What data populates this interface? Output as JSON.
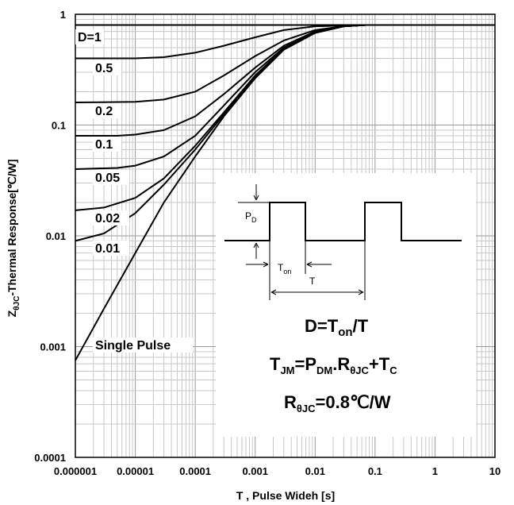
{
  "chart_data": {
    "type": "line",
    "xlabel": "T , Pulse Wideh [s]",
    "ylabel": "Z",
    "ylabel_sub": "θJC",
    "ylabel_rest": "-Thermal Response[℃/W]",
    "x_scale": "log",
    "y_scale": "log",
    "xlim": [
      1e-06,
      10
    ],
    "ylim": [
      0.0001,
      1
    ],
    "grid": true,
    "x_ticks": [
      "0.000001",
      "0.00001",
      "0.0001",
      "0.001",
      "0.01",
      "0.1",
      "1",
      "10"
    ],
    "y_ticks": [
      "1",
      "0.1",
      "0.01",
      "0.001",
      "0.0001"
    ],
    "series": [
      {
        "name": "D=1",
        "x": [
          1e-06,
          10
        ],
        "values": [
          0.8,
          0.8
        ]
      },
      {
        "name": "0.5",
        "values": [
          [
            1e-06,
            0.4
          ],
          [
            1e-05,
            0.4
          ],
          [
            3e-05,
            0.41
          ],
          [
            0.0001,
            0.45
          ],
          [
            0.0003,
            0.52
          ],
          [
            0.001,
            0.62
          ],
          [
            0.003,
            0.72
          ],
          [
            0.01,
            0.78
          ],
          [
            0.03,
            0.79
          ],
          [
            0.06,
            0.8
          ],
          [
            10,
            0.8
          ]
        ]
      },
      {
        "name": "0.2",
        "values": [
          [
            1e-06,
            0.16
          ],
          [
            1e-05,
            0.162
          ],
          [
            3e-05,
            0.17
          ],
          [
            0.0001,
            0.2
          ],
          [
            0.0003,
            0.28
          ],
          [
            0.001,
            0.42
          ],
          [
            0.003,
            0.58
          ],
          [
            0.01,
            0.72
          ],
          [
            0.03,
            0.78
          ],
          [
            0.07,
            0.8
          ],
          [
            10,
            0.8
          ]
        ]
      },
      {
        "name": "0.1",
        "values": [
          [
            1e-06,
            0.08
          ],
          [
            5e-06,
            0.08
          ],
          [
            1e-05,
            0.082
          ],
          [
            3e-05,
            0.09
          ],
          [
            0.0001,
            0.12
          ],
          [
            0.0003,
            0.19
          ],
          [
            0.001,
            0.33
          ],
          [
            0.003,
            0.52
          ],
          [
            0.01,
            0.7
          ],
          [
            0.03,
            0.78
          ],
          [
            0.07,
            0.8
          ],
          [
            10,
            0.8
          ]
        ]
      },
      {
        "name": "0.05",
        "values": [
          [
            1e-06,
            0.04
          ],
          [
            5e-06,
            0.041
          ],
          [
            1e-05,
            0.043
          ],
          [
            3e-05,
            0.052
          ],
          [
            0.0001,
            0.08
          ],
          [
            0.0003,
            0.15
          ],
          [
            0.001,
            0.3
          ],
          [
            0.003,
            0.5
          ],
          [
            0.01,
            0.69
          ],
          [
            0.03,
            0.78
          ],
          [
            0.07,
            0.8
          ],
          [
            10,
            0.8
          ]
        ]
      },
      {
        "name": "0.02",
        "values": [
          [
            1e-06,
            0.017
          ],
          [
            3e-06,
            0.018
          ],
          [
            1e-05,
            0.022
          ],
          [
            3e-05,
            0.033
          ],
          [
            0.0001,
            0.065
          ],
          [
            0.0003,
            0.13
          ],
          [
            0.001,
            0.28
          ],
          [
            0.003,
            0.49
          ],
          [
            0.01,
            0.68
          ],
          [
            0.03,
            0.78
          ],
          [
            0.07,
            0.8
          ],
          [
            10,
            0.8
          ]
        ]
      },
      {
        "name": "0.01",
        "values": [
          [
            1e-06,
            0.009
          ],
          [
            3e-06,
            0.0105
          ],
          [
            1e-05,
            0.016
          ],
          [
            3e-05,
            0.029
          ],
          [
            0.0001,
            0.06
          ],
          [
            0.0003,
            0.125
          ],
          [
            0.001,
            0.27
          ],
          [
            0.003,
            0.48
          ],
          [
            0.01,
            0.68
          ],
          [
            0.03,
            0.78
          ],
          [
            0.07,
            0.8
          ],
          [
            10,
            0.8
          ]
        ]
      },
      {
        "name": "Single Pulse",
        "values": [
          [
            1e-06,
            0.00075
          ],
          [
            3e-06,
            0.0022
          ],
          [
            1e-05,
            0.007
          ],
          [
            3e-05,
            0.02
          ],
          [
            0.0001,
            0.052
          ],
          [
            0.0003,
            0.12
          ],
          [
            0.001,
            0.265
          ],
          [
            0.003,
            0.48
          ],
          [
            0.01,
            0.68
          ],
          [
            0.03,
            0.78
          ],
          [
            0.07,
            0.8
          ],
          [
            10,
            0.8
          ]
        ]
      }
    ]
  },
  "inset": {
    "pd_label": "P",
    "pd_sub": "D",
    "ton_label": "T",
    "ton_sub": "on",
    "t_label": "T",
    "formula1_a": "D=T",
    "formula1_sub": "on",
    "formula1_b": "/T",
    "formula2_a": "T",
    "formula2_sub1": "JM",
    "formula2_b": "=P",
    "formula2_sub2": "DM",
    "formula2_c": ".R",
    "formula2_sub3": "θJC",
    "formula2_d": "+T",
    "formula2_sub4": "C",
    "formula3_a": "R",
    "formula3_sub": "θJC",
    "formula3_b": "=0.8℃/W"
  }
}
